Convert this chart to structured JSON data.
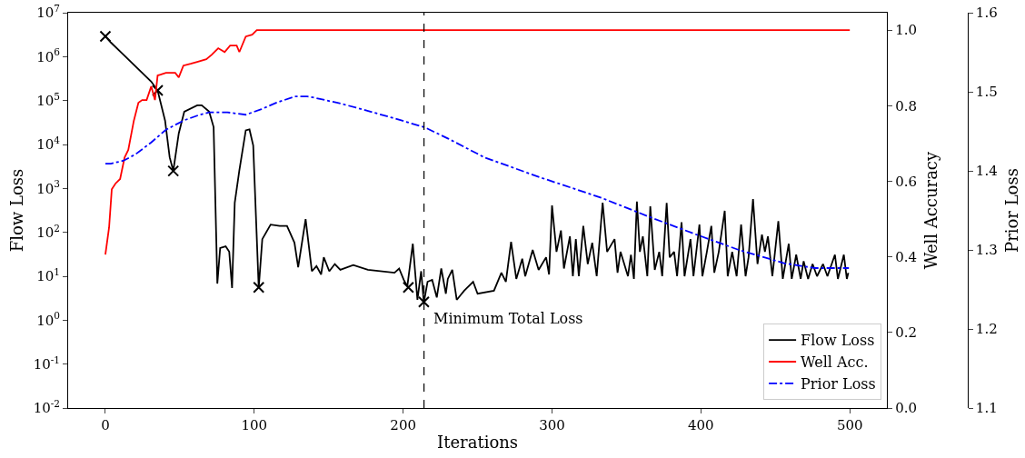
{
  "chart_data": {
    "type": "line",
    "xlabel": "Iterations",
    "ylabel": "Flow Loss",
    "y2label": "Well Accuracy",
    "y3label": "Prior Loss",
    "log": "y",
    "grid": false,
    "legend": "bottom right",
    "xlim": [
      -25,
      525
    ],
    "xticks": [
      0,
      100,
      200,
      300,
      400,
      500
    ],
    "ylim": [
      0.01,
      10000000
    ],
    "yticks": [
      {
        "value": 0.01,
        "label": "10$^{-2}$"
      },
      {
        "value": 0.1,
        "label": "10$^{-1}$"
      },
      {
        "value": 1,
        "label": "10$^{0}$"
      },
      {
        "value": 10,
        "label": "10$^{1}$"
      },
      {
        "value": 100,
        "label": "10$^{2}$"
      },
      {
        "value": 1000,
        "label": "10$^{3}$"
      },
      {
        "value": 10000,
        "label": "10$^{4}$"
      },
      {
        "value": 100000,
        "label": "10$^{5}$"
      },
      {
        "value": 1000000,
        "label": "10$^{6}$"
      },
      {
        "value": 10000000,
        "label": "10$^{7}$"
      }
    ],
    "y2lim": [
      0,
      1.046
    ],
    "y2ticks": [
      {
        "value": 0,
        "label": "0.0"
      },
      {
        "value": 0.2,
        "label": "0.2"
      },
      {
        "value": 0.4,
        "label": "0.4"
      },
      {
        "value": 0.6,
        "label": "0.6"
      },
      {
        "value": 0.8,
        "label": "0.8"
      },
      {
        "value": 1,
        "label": "1.0"
      }
    ],
    "y3lim": [
      1.1,
      1.6
    ],
    "y3ticks": [
      1.1,
      1.2,
      1.3,
      1.4,
      1.5,
      1.6
    ],
    "series": [
      {
        "name": "Flow Loss",
        "color": "#000000",
        "line_style": "solid",
        "x": [
          0,
          3.7,
          12.3,
          20.3,
          30.8,
          35.1,
          40.1,
          43.2,
          45.6,
          49.3,
          53,
          61.7,
          64.7,
          69.7,
          72.7,
          75.2,
          77.1,
          80.8,
          83.2,
          85.1,
          86.9,
          90,
          94.3,
          96.8,
          99.3,
          103,
          105.4,
          111,
          117.1,
          122,
          127,
          129.5,
          134.5,
          138.7,
          141.8,
          144.9,
          146.7,
          150.4,
          154.1,
          157.8,
          166.5,
          176.3,
          194.2,
          197.3,
          200.4,
          202.8,
          206.5,
          209.6,
          212.1,
          213.9,
          216.4,
          219.5,
          222.6,
          225.6,
          228.7,
          230,
          233,
          236,
          241,
          247,
          250,
          261,
          266,
          269,
          272.5,
          276,
          280,
          282,
          287,
          291,
          296,
          298,
          300,
          303,
          306,
          308,
          312,
          314,
          316,
          318,
          321,
          324,
          327,
          330,
          334,
          337,
          342,
          344,
          346,
          351,
          353,
          355,
          357,
          359,
          361,
          364,
          366,
          369,
          372,
          374,
          377,
          379,
          382,
          384,
          387,
          389,
          393,
          395,
          399,
          401,
          404,
          407,
          409,
          412,
          416,
          418,
          421,
          424,
          427,
          430,
          432,
          435,
          438,
          441,
          443,
          445,
          448,
          452,
          455,
          459,
          461,
          464,
          467,
          469,
          472,
          475,
          478,
          482,
          485,
          490,
          492,
          496,
          498,
          499
        ],
        "values": [
          2900000,
          2100000,
          1100000,
          600000,
          270000,
          170000,
          35000,
          5100,
          2500,
          18000,
          56000,
          78000,
          78000,
          56000,
          25000,
          6.8,
          44,
          48,
          36,
          5.4,
          470,
          2600,
          21000,
          22000,
          9500,
          5.4,
          70,
          150,
          140,
          140,
          58,
          16,
          200,
          13,
          17,
          11,
          27,
          13,
          19,
          14,
          18,
          14,
          12,
          15,
          8.3,
          5.9,
          55,
          2.9,
          13,
          2.5,
          7.5,
          8.3,
          3.3,
          15,
          4,
          8.7,
          14,
          2.9,
          4.7,
          7.5,
          4,
          4.7,
          12,
          7.5,
          61,
          8.7,
          25,
          10,
          40,
          14,
          27,
          11,
          410,
          36,
          110,
          15,
          81,
          10,
          70,
          10,
          140,
          19,
          58,
          10,
          470,
          36,
          70,
          12,
          36,
          10,
          31,
          8.7,
          500,
          36,
          81,
          10,
          390,
          14,
          36,
          10,
          470,
          27,
          36,
          10,
          170,
          10,
          70,
          10,
          150,
          10,
          36,
          140,
          12,
          36,
          310,
          10,
          36,
          10,
          150,
          10,
          27,
          570,
          19,
          89,
          36,
          81,
          10,
          180,
          8.7,
          55,
          8.7,
          31,
          8.7,
          22,
          8.7,
          19,
          10,
          19,
          10,
          31,
          8.7,
          31,
          8.7,
          12
        ]
      },
      {
        "name": "Well Acc.",
        "axis": "y2",
        "color": "#ff0000",
        "line_style": "solid",
        "x": [
          0,
          2.5,
          4.3,
          6.8,
          9.9,
          12.9,
          15.4,
          19.1,
          22.2,
          24.7,
          27.7,
          30.8,
          33.3,
          35.1,
          37,
          40.7,
          46.9,
          49.3,
          52.4,
          57.3,
          61.7,
          67.8,
          71.5,
          75.8,
          80.1,
          83.8,
          88.2,
          90,
          94.3,
          98.6,
          101.7,
          500
        ],
        "values": [
          0.406,
          0.478,
          0.579,
          0.594,
          0.606,
          0.663,
          0.683,
          0.76,
          0.808,
          0.815,
          0.815,
          0.851,
          0.815,
          0.88,
          0.882,
          0.887,
          0.887,
          0.875,
          0.906,
          0.911,
          0.916,
          0.923,
          0.935,
          0.952,
          0.942,
          0.959,
          0.959,
          0.942,
          0.983,
          0.988,
          1.0,
          1.0
        ]
      },
      {
        "name": "Prior Loss",
        "axis": "y3",
        "color": "#0000ff",
        "line_style": "dashdot",
        "x": [
          0,
          3.7,
          12.3,
          20.3,
          30.8,
          40.7,
          53,
          63.5,
          69.7,
          82,
          94.3,
          104.8,
          114.7,
          127,
          135.6,
          139.3,
          156,
          168.3,
          193,
          214.5,
          230,
          254.6,
          291.6,
          333,
          363.7,
          394.6,
          425.4,
          456.2,
          476.6,
          499.4
        ],
        "values": [
          1.409,
          1.409,
          1.413,
          1.421,
          1.436,
          1.452,
          1.464,
          1.471,
          1.474,
          1.474,
          1.471,
          1.478,
          1.486,
          1.494,
          1.494,
          1.493,
          1.486,
          1.48,
          1.467,
          1.455,
          1.441,
          1.417,
          1.392,
          1.366,
          1.343,
          1.321,
          1.3,
          1.283,
          1.277,
          1.277
        ]
      },
      {
        "type": "scatter",
        "color": "#000000",
        "marker": "cross",
        "x": [
          0,
          35.1,
          45.6,
          103,
          203.5,
          213.9
        ],
        "values": [
          2900000,
          170000,
          2500,
          5.6,
          5.6,
          2.6
        ]
      }
    ],
    "ref_lines": [
      {
        "axis": "x",
        "value": 214,
        "label": "Minimum Total Loss",
        "color": "#000000",
        "line_style": "dashed"
      }
    ]
  }
}
